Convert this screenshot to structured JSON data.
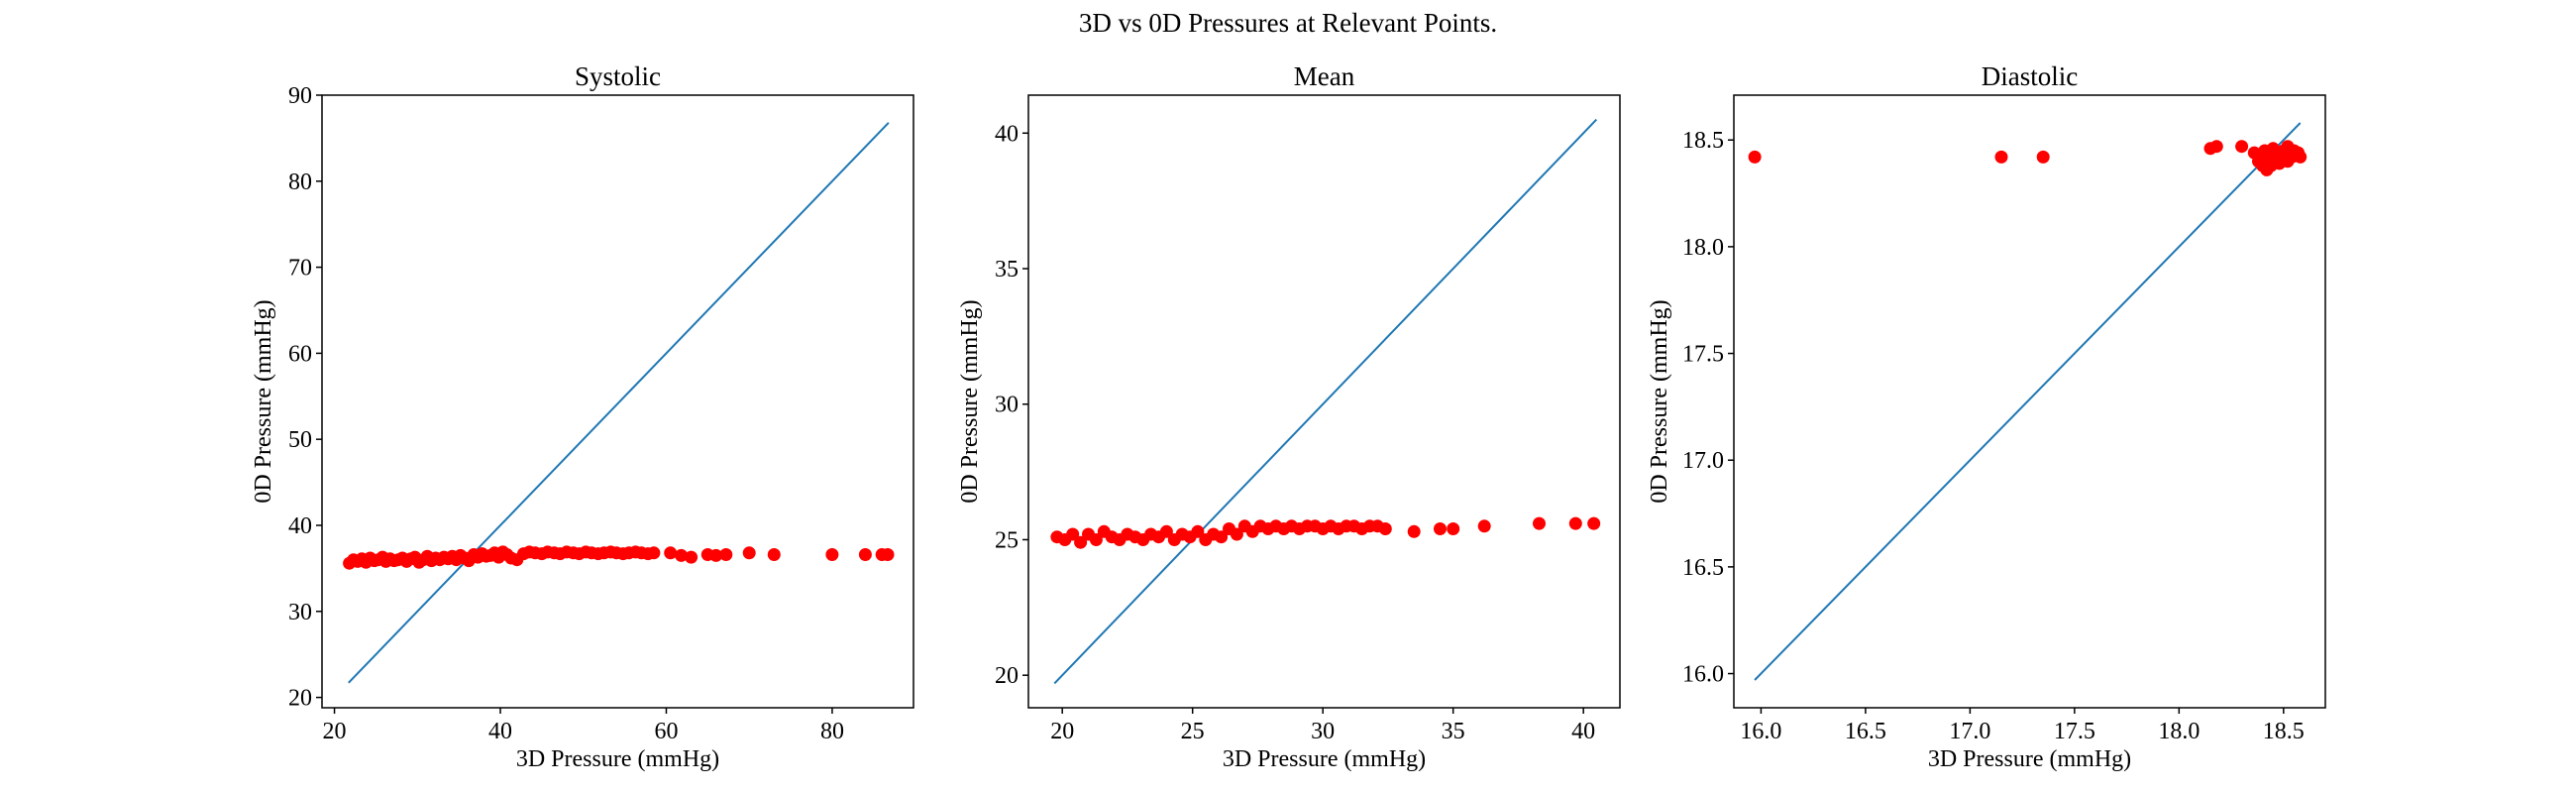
{
  "figure_title": "3D vs 0D Pressures at Relevant Points.",
  "colors": {
    "identity_line": "#1f77b4",
    "points": "#ff0000",
    "axes": "#000000"
  },
  "chart_data": [
    {
      "type": "scatter",
      "title": "Systolic",
      "xlabel": "3D Pressure (mmHg)",
      "ylabel": "0D Pressure (mmHg)",
      "xlim": [
        18.5,
        89.8
      ],
      "ylim": [
        18.8,
        90
      ],
      "xticks": [
        20,
        40,
        60,
        80
      ],
      "yticks": [
        20,
        30,
        40,
        50,
        60,
        70,
        80,
        90
      ],
      "identity_line": [
        21.7,
        86.8
      ],
      "series": [
        {
          "marker": "circle",
          "points": [
            [
              21.8,
              35.6
            ],
            [
              22.3,
              36.0
            ],
            [
              22.8,
              35.8
            ],
            [
              23.3,
              36.1
            ],
            [
              23.8,
              35.7
            ],
            [
              24.3,
              36.2
            ],
            [
              24.8,
              35.9
            ],
            [
              25.3,
              36.0
            ],
            [
              25.8,
              36.3
            ],
            [
              26.2,
              35.8
            ],
            [
              26.7,
              36.1
            ],
            [
              27.2,
              35.9
            ],
            [
              27.7,
              36.0
            ],
            [
              28.2,
              36.2
            ],
            [
              28.7,
              35.8
            ],
            [
              29.2,
              36.1
            ],
            [
              29.7,
              36.3
            ],
            [
              30.2,
              35.7
            ],
            [
              30.7,
              36.0
            ],
            [
              31.2,
              36.4
            ],
            [
              31.7,
              35.9
            ],
            [
              32.2,
              36.2
            ],
            [
              32.7,
              36.0
            ],
            [
              33.2,
              36.3
            ],
            [
              33.7,
              36.1
            ],
            [
              34.2,
              36.4
            ],
            [
              34.7,
              36.0
            ],
            [
              35.2,
              36.5
            ],
            [
              35.7,
              36.2
            ],
            [
              36.2,
              35.9
            ],
            [
              36.8,
              36.6
            ],
            [
              37.3,
              36.3
            ],
            [
              37.8,
              36.7
            ],
            [
              38.3,
              36.4
            ],
            [
              38.8,
              36.5
            ],
            [
              39.3,
              36.8
            ],
            [
              39.8,
              36.3
            ],
            [
              40.3,
              36.9
            ],
            [
              40.8,
              36.6
            ],
            [
              41.3,
              36.2
            ],
            [
              42.0,
              36.0
            ],
            [
              42.8,
              36.7
            ],
            [
              43.5,
              36.9
            ],
            [
              44.2,
              36.8
            ],
            [
              45.0,
              36.7
            ],
            [
              45.7,
              36.9
            ],
            [
              46.5,
              36.8
            ],
            [
              47.2,
              36.7
            ],
            [
              48.0,
              36.9
            ],
            [
              48.8,
              36.8
            ],
            [
              49.5,
              36.7
            ],
            [
              50.3,
              36.9
            ],
            [
              51.0,
              36.8
            ],
            [
              51.8,
              36.7
            ],
            [
              52.5,
              36.8
            ],
            [
              53.3,
              36.9
            ],
            [
              54.0,
              36.8
            ],
            [
              54.8,
              36.7
            ],
            [
              55.5,
              36.8
            ],
            [
              56.3,
              36.9
            ],
            [
              57.0,
              36.8
            ],
            [
              57.8,
              36.7
            ],
            [
              58.5,
              36.8
            ],
            [
              60.5,
              36.8
            ],
            [
              61.8,
              36.5
            ],
            [
              63.0,
              36.3
            ],
            [
              65.0,
              36.6
            ],
            [
              66.0,
              36.5
            ],
            [
              67.2,
              36.6
            ],
            [
              70.0,
              36.8
            ],
            [
              73.0,
              36.6
            ],
            [
              80.0,
              36.6
            ],
            [
              84.0,
              36.6
            ],
            [
              86.0,
              36.6
            ],
            [
              86.7,
              36.6
            ]
          ]
        }
      ]
    },
    {
      "type": "scatter",
      "title": "Mean",
      "xlabel": "3D Pressure (mmHg)",
      "ylabel": "0D Pressure (mmHg)",
      "xlim": [
        18.7,
        41.4
      ],
      "ylim": [
        18.8,
        41.4
      ],
      "xticks": [
        20,
        25,
        30,
        35,
        40
      ],
      "yticks": [
        20,
        25,
        30,
        35,
        40
      ],
      "identity_line": [
        19.7,
        40.5
      ],
      "series": [
        {
          "marker": "circle",
          "points": [
            [
              19.8,
              25.1
            ],
            [
              20.1,
              25.0
            ],
            [
              20.4,
              25.2
            ],
            [
              20.7,
              24.9
            ],
            [
              21.0,
              25.2
            ],
            [
              21.3,
              25.0
            ],
            [
              21.6,
              25.3
            ],
            [
              21.9,
              25.1
            ],
            [
              22.2,
              25.0
            ],
            [
              22.5,
              25.2
            ],
            [
              22.8,
              25.1
            ],
            [
              23.1,
              25.0
            ],
            [
              23.4,
              25.2
            ],
            [
              23.7,
              25.1
            ],
            [
              24.0,
              25.3
            ],
            [
              24.3,
              25.0
            ],
            [
              24.6,
              25.2
            ],
            [
              24.9,
              25.1
            ],
            [
              25.2,
              25.3
            ],
            [
              25.5,
              25.0
            ],
            [
              25.8,
              25.2
            ],
            [
              26.1,
              25.1
            ],
            [
              26.4,
              25.4
            ],
            [
              26.7,
              25.2
            ],
            [
              27.0,
              25.5
            ],
            [
              27.3,
              25.3
            ],
            [
              27.6,
              25.5
            ],
            [
              27.9,
              25.4
            ],
            [
              28.2,
              25.5
            ],
            [
              28.5,
              25.4
            ],
            [
              28.8,
              25.5
            ],
            [
              29.1,
              25.4
            ],
            [
              29.4,
              25.5
            ],
            [
              29.7,
              25.5
            ],
            [
              30.0,
              25.4
            ],
            [
              30.3,
              25.5
            ],
            [
              30.6,
              25.4
            ],
            [
              30.9,
              25.5
            ],
            [
              31.2,
              25.5
            ],
            [
              31.5,
              25.4
            ],
            [
              31.8,
              25.5
            ],
            [
              32.1,
              25.5
            ],
            [
              32.4,
              25.4
            ],
            [
              33.5,
              25.3
            ],
            [
              34.5,
              25.4
            ],
            [
              35.0,
              25.4
            ],
            [
              36.2,
              25.5
            ],
            [
              38.3,
              25.6
            ],
            [
              39.7,
              25.6
            ],
            [
              40.4,
              25.6
            ]
          ]
        }
      ]
    },
    {
      "type": "scatter",
      "title": "Diastolic",
      "xlabel": "3D Pressure (mmHg)",
      "ylabel": "0D Pressure (mmHg)",
      "xlim": [
        15.87,
        18.7
      ],
      "ylim": [
        15.84,
        18.71
      ],
      "xticks": [
        "16.0",
        "16.5",
        "17.0",
        "17.5",
        "18.0",
        "18.5"
      ],
      "yticks": [
        "16.0",
        "16.5",
        "17.0",
        "17.5",
        "18.0",
        "18.5"
      ],
      "identity_line": [
        15.97,
        18.58
      ],
      "series": [
        {
          "marker": "circle",
          "points": [
            [
              15.97,
              18.42
            ],
            [
              17.15,
              18.42
            ],
            [
              17.35,
              18.42
            ],
            [
              18.15,
              18.46
            ],
            [
              18.18,
              18.47
            ],
            [
              18.3,
              18.47
            ],
            [
              18.36,
              18.44
            ],
            [
              18.38,
              18.4
            ],
            [
              18.4,
              18.38
            ],
            [
              18.4,
              18.42
            ],
            [
              18.41,
              18.45
            ],
            [
              18.42,
              18.36
            ],
            [
              18.42,
              18.4
            ],
            [
              18.43,
              18.43
            ],
            [
              18.44,
              18.38
            ],
            [
              18.45,
              18.46
            ],
            [
              18.46,
              18.41
            ],
            [
              18.47,
              18.44
            ],
            [
              18.48,
              18.39
            ],
            [
              18.49,
              18.42
            ],
            [
              18.5,
              18.45
            ],
            [
              18.51,
              18.43
            ],
            [
              18.52,
              18.4
            ],
            [
              18.52,
              18.47
            ],
            [
              18.53,
              18.44
            ],
            [
              18.54,
              18.42
            ],
            [
              18.55,
              18.45
            ],
            [
              18.56,
              18.43
            ],
            [
              18.57,
              18.44
            ],
            [
              18.58,
              18.42
            ]
          ]
        }
      ]
    }
  ]
}
